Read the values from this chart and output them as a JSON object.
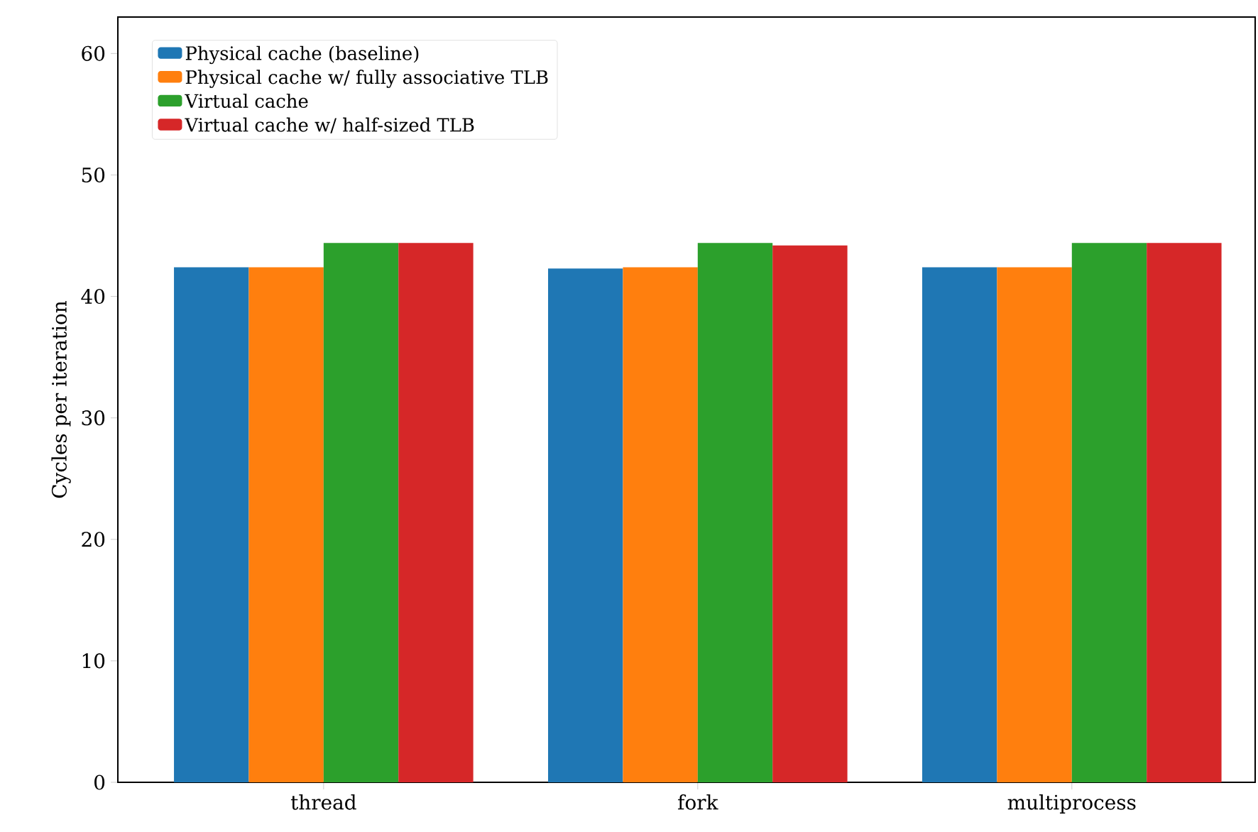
{
  "chart_data": {
    "type": "bar",
    "ylabel": "Cycles per iteration",
    "categories": [
      "thread",
      "fork",
      "multiprocess"
    ],
    "series": [
      {
        "name": "Physical cache (baseline)",
        "color": "#1f77b4",
        "values": [
          42.4,
          42.3,
          42.4
        ]
      },
      {
        "name": "Physical cache w/ fully associative TLB",
        "color": "#ff7f0e",
        "values": [
          42.4,
          42.4,
          42.4
        ]
      },
      {
        "name": "Virtual cache",
        "color": "#2ca02c",
        "values": [
          44.4,
          44.4,
          44.4
        ]
      },
      {
        "name": "Virtual cache w/ half-sized TLB",
        "color": "#d62728",
        "values": [
          44.4,
          44.2,
          44.4
        ]
      }
    ],
    "ylim": [
      0,
      63
    ],
    "yticks": [
      0,
      10,
      20,
      30,
      40,
      50,
      60
    ],
    "grid": false,
    "legend": "top left"
  }
}
